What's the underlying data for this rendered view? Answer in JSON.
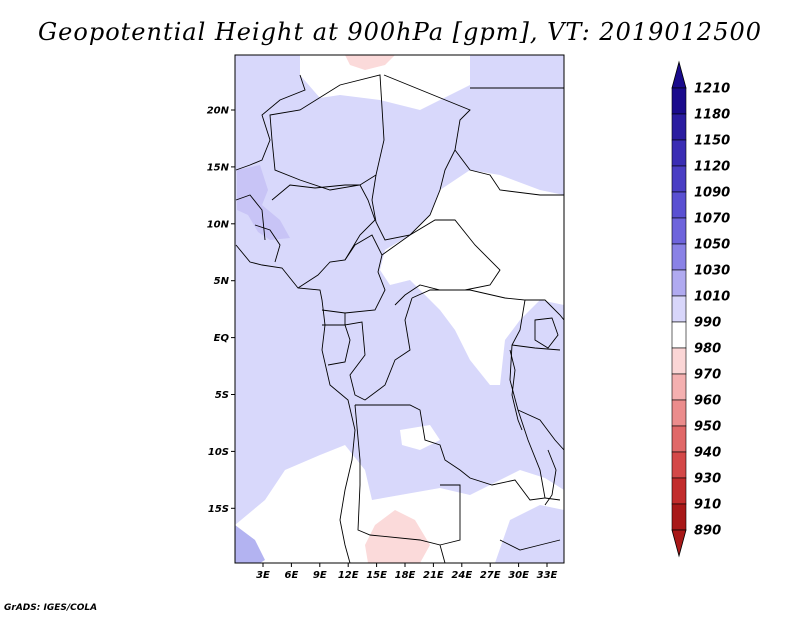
{
  "title": "Geopotential Height at 900hPa [gpm], VT: 2019012500",
  "credit": "GrADS: IGES/COLA",
  "map": {
    "lat_ticks": [
      "20N",
      "15N",
      "10N",
      "5N",
      "EQ",
      "5S",
      "10S",
      "15S"
    ],
    "lon_ticks": [
      "3E",
      "6E",
      "9E",
      "12E",
      "15E",
      "18E",
      "21E",
      "24E",
      "27E",
      "30E",
      "33E"
    ]
  },
  "colorbar": {
    "levels": [
      "1210",
      "1180",
      "1150",
      "1120",
      "1090",
      "1070",
      "1050",
      "1030",
      "1010",
      "990",
      "980",
      "970",
      "960",
      "950",
      "940",
      "930",
      "910",
      "890"
    ],
    "colors": [
      "#1a0b8c",
      "#2a1ca0",
      "#3a2db4",
      "#4a3ec4",
      "#5a50d2",
      "#6e64dc",
      "#8a82e6",
      "#b0aaf0",
      "#d8d6fa",
      "#ffffff",
      "#fbd6d6",
      "#f4b0b0",
      "#eb8c8c",
      "#e06868",
      "#d44848",
      "#c22c2c",
      "#a81818"
    ]
  },
  "field_colors": {
    "light_blue": "#d8d8fb",
    "medium_blue": "#b3b3f1",
    "lavender": "#c8c4f6",
    "white": "#ffffff",
    "pink": "#fbdada"
  }
}
